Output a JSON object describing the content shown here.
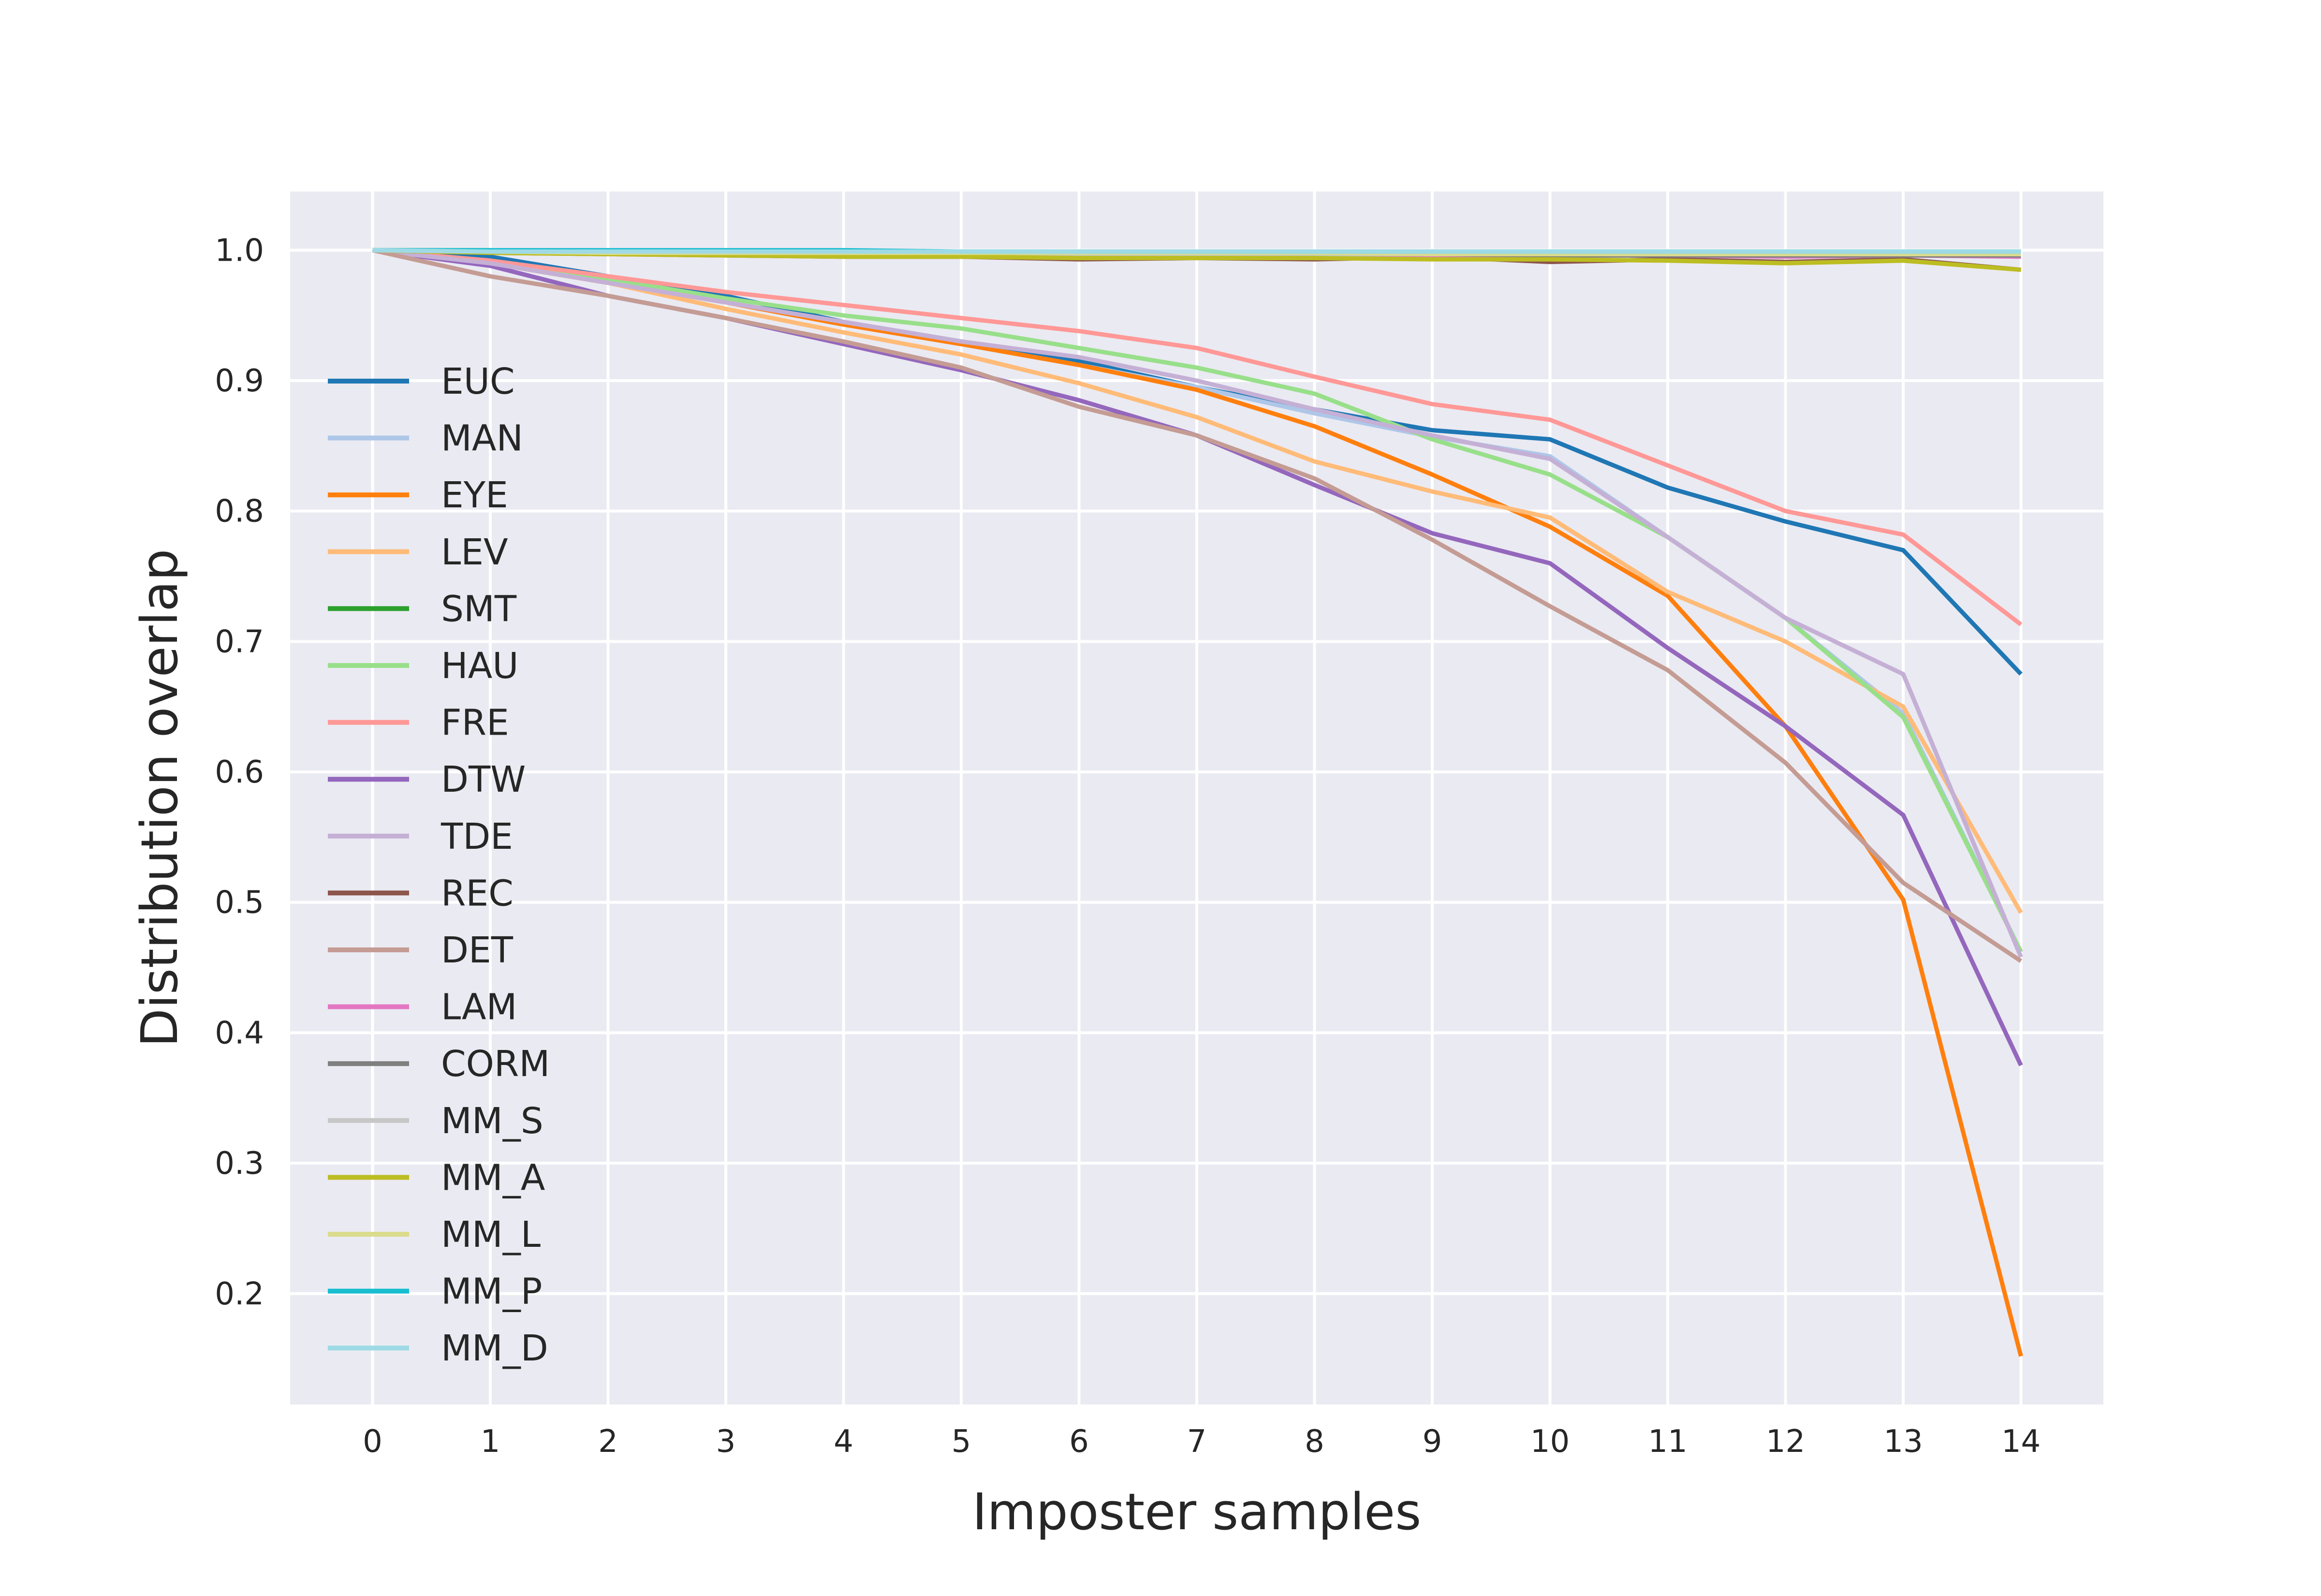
{
  "chart_data": {
    "type": "line",
    "title": "",
    "xlabel": "Imposter samples",
    "ylabel": "Distribution overlap",
    "x": [
      0,
      1,
      2,
      3,
      4,
      5,
      6,
      7,
      8,
      9,
      10,
      11,
      12,
      13,
      14
    ],
    "xlim": [
      -0.7,
      14.7
    ],
    "ylim": [
      0.115,
      1.045
    ],
    "xticks": [
      0,
      1,
      2,
      3,
      4,
      5,
      6,
      7,
      8,
      9,
      10,
      11,
      12,
      13,
      14
    ],
    "yticks": [
      0.2,
      0.3,
      0.4,
      0.5,
      0.6,
      0.7,
      0.8,
      0.9,
      1.0
    ],
    "ytick_labels": [
      "0.2",
      "0.3",
      "0.4",
      "0.5",
      "0.6",
      "0.7",
      "0.8",
      "0.9",
      "1.0"
    ],
    "grid": true,
    "legend_position": "center-left",
    "series": [
      {
        "name": "EUC",
        "color": "#1f77b4",
        "values": [
          1.0,
          0.995,
          0.98,
          0.965,
          0.945,
          0.93,
          0.915,
          0.895,
          0.878,
          0.862,
          0.855,
          0.818,
          0.792,
          0.77,
          0.675
        ]
      },
      {
        "name": "MAN",
        "color": "#aec7e8",
        "values": [
          1.0,
          0.99,
          0.975,
          0.96,
          0.945,
          0.928,
          0.912,
          0.895,
          0.875,
          0.857,
          0.842,
          0.78,
          0.718,
          0.645,
          0.462
        ]
      },
      {
        "name": "EYE",
        "color": "#ff7f0e",
        "values": [
          1.0,
          0.99,
          0.975,
          0.96,
          0.943,
          0.928,
          0.912,
          0.893,
          0.865,
          0.828,
          0.788,
          0.735,
          0.635,
          0.502,
          0.152
        ]
      },
      {
        "name": "LEV",
        "color": "#ffbb78",
        "values": [
          1.0,
          0.99,
          0.975,
          0.955,
          0.937,
          0.92,
          0.898,
          0.872,
          0.838,
          0.815,
          0.795,
          0.738,
          0.7,
          0.65,
          0.492
        ]
      },
      {
        "name": "SMT",
        "color": "#2ca02c",
        "values": [
          1.0,
          1.0,
          0.998,
          0.997,
          0.997,
          0.997,
          0.997,
          0.997,
          0.997,
          0.997,
          0.997,
          0.997,
          0.997,
          0.997,
          0.997
        ]
      },
      {
        "name": "HAU",
        "color": "#98df8a",
        "values": [
          1.0,
          0.99,
          0.978,
          0.963,
          0.95,
          0.94,
          0.925,
          0.91,
          0.89,
          0.855,
          0.828,
          0.78,
          0.718,
          0.642,
          0.462
        ]
      },
      {
        "name": "FRE",
        "color": "#ff9896",
        "values": [
          1.0,
          0.992,
          0.98,
          0.968,
          0.958,
          0.948,
          0.938,
          0.925,
          0.903,
          0.882,
          0.87,
          0.835,
          0.8,
          0.782,
          0.713
        ]
      },
      {
        "name": "DTW",
        "color": "#9467bd",
        "values": [
          1.0,
          0.988,
          0.965,
          0.948,
          0.928,
          0.908,
          0.885,
          0.858,
          0.82,
          0.783,
          0.76,
          0.695,
          0.635,
          0.567,
          0.375
        ]
      },
      {
        "name": "TDE",
        "color": "#c5b0d5",
        "values": [
          1.0,
          0.99,
          0.975,
          0.96,
          0.945,
          0.93,
          0.918,
          0.9,
          0.878,
          0.858,
          0.84,
          0.78,
          0.718,
          0.675,
          0.458
        ]
      },
      {
        "name": "REC",
        "color": "#8c564b",
        "values": [
          1.0,
          0.998,
          0.997,
          0.996,
          0.995,
          0.995,
          0.993,
          0.994,
          0.993,
          0.995,
          0.991,
          0.993,
          0.991,
          0.993,
          0.985
        ]
      },
      {
        "name": "DET",
        "color": "#c49c94",
        "values": [
          1.0,
          0.98,
          0.965,
          0.948,
          0.93,
          0.91,
          0.88,
          0.858,
          0.825,
          0.778,
          0.727,
          0.678,
          0.607,
          0.515,
          0.455
        ]
      },
      {
        "name": "LAM",
        "color": "#e377c2",
        "values": [
          1.0,
          0.999,
          0.998,
          0.998,
          0.998,
          0.998,
          0.997,
          0.997,
          0.997,
          0.996,
          0.996,
          0.996,
          0.995,
          0.996,
          0.995
        ]
      },
      {
        "name": "CORM",
        "color": "#7f7f7f",
        "values": [
          1.0,
          0.999,
          0.998,
          0.998,
          0.998,
          0.997,
          0.997,
          0.997,
          0.997,
          0.997,
          0.996,
          0.996,
          0.996,
          0.996,
          0.996
        ]
      },
      {
        "name": "MM_S",
        "color": "#c7c7c7",
        "values": [
          1.0,
          0.999,
          0.998,
          0.998,
          0.998,
          0.997,
          0.997,
          0.997,
          0.997,
          0.997,
          0.997,
          0.997,
          0.997,
          0.997,
          0.997
        ]
      },
      {
        "name": "MM_A",
        "color": "#bcbd22",
        "values": [
          1.0,
          0.998,
          0.997,
          0.996,
          0.995,
          0.995,
          0.994,
          0.994,
          0.994,
          0.993,
          0.993,
          0.992,
          0.99,
          0.992,
          0.985
        ]
      },
      {
        "name": "MM_L",
        "color": "#dbdb8d",
        "values": [
          1.0,
          0.999,
          0.998,
          0.998,
          0.998,
          0.998,
          0.998,
          0.998,
          0.998,
          0.997,
          0.997,
          0.997,
          0.997,
          0.997,
          0.997
        ]
      },
      {
        "name": "MM_P",
        "color": "#17becf",
        "values": [
          1.0,
          1.0,
          1.0,
          1.0,
          1.0,
          0.999,
          0.999,
          0.999,
          0.999,
          0.999,
          0.999,
          0.999,
          0.999,
          0.999,
          0.999
        ]
      },
      {
        "name": "MM_D",
        "color": "#9edae5",
        "values": [
          1.0,
          0.999,
          0.999,
          0.999,
          0.999,
          0.999,
          0.999,
          0.999,
          0.999,
          0.999,
          0.999,
          0.999,
          0.999,
          0.999,
          0.999
        ]
      }
    ]
  }
}
